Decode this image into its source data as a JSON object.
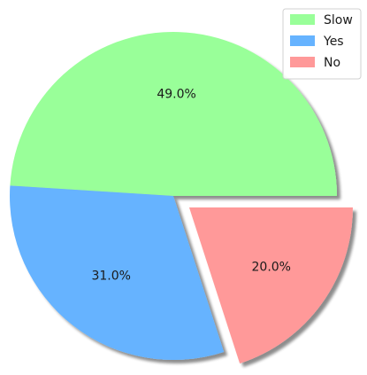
{
  "chart_data": {
    "type": "pie",
    "categories": [
      "Slow",
      "Yes",
      "No"
    ],
    "values": [
      49.0,
      31.0,
      20.0
    ],
    "labels": [
      "49.0%",
      "31.0%",
      "20.0%"
    ],
    "colors": [
      "#99ff99",
      "#66b3ff",
      "#ff9999"
    ],
    "exploded": [
      "No"
    ],
    "shadow": true,
    "legend": {
      "position": "top-right",
      "entries": [
        "Slow",
        "Yes",
        "No"
      ]
    }
  }
}
